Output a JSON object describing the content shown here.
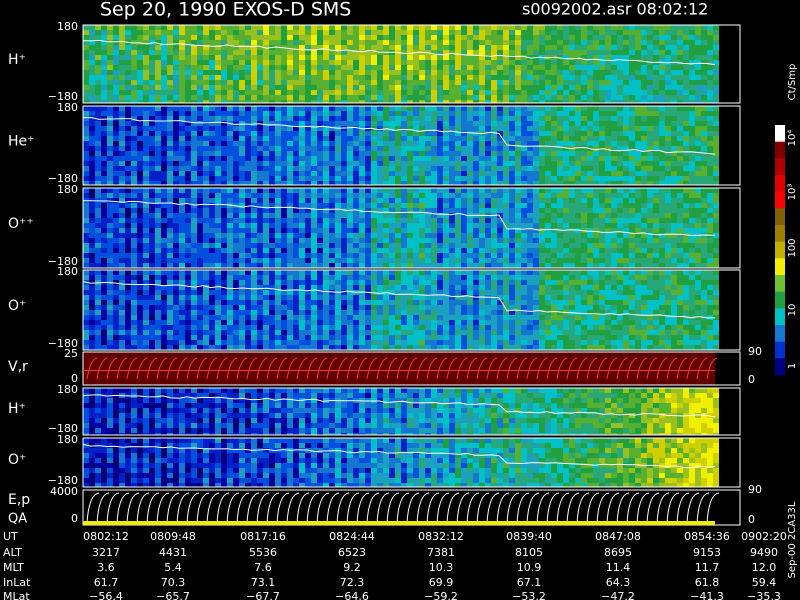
{
  "header": {
    "title": "Sep 20, 1990   EXOS-D SMS",
    "file": "s0092002.asr  08:02:12"
  },
  "panels": [
    {
      "label": "H⁺",
      "ticks": [
        "180",
        "−180"
      ]
    },
    {
      "label": "He⁺",
      "ticks": [
        "180",
        "−180"
      ]
    },
    {
      "label": "O⁺⁺",
      "ticks": [
        "180",
        "−180"
      ]
    },
    {
      "label": "O⁺",
      "ticks": [
        "180",
        "−180"
      ]
    },
    {
      "label": "V,r",
      "ticks": [
        "25",
        "0"
      ],
      "right_ticks": [
        "90",
        "0"
      ]
    },
    {
      "label": "H⁺",
      "ticks": [
        "180",
        "−180"
      ]
    },
    {
      "label": "O⁺",
      "ticks": [
        "180",
        "−180"
      ]
    },
    {
      "label": "E,p",
      "label2": "QA",
      "ticks": [
        "4000",
        "0"
      ],
      "right_ticks": [
        "90",
        "0"
      ]
    }
  ],
  "colorbar": {
    "title": "Ct/Smp",
    "ticks": [
      "10⁴",
      "10³",
      "100",
      "10",
      "1"
    ]
  },
  "table": {
    "rows": [
      {
        "label": "UT",
        "values": [
          "0802:12",
          "0809:48",
          "0817:16",
          "0824:44",
          "0832:12",
          "0839:40",
          "0847:08",
          "0854:36",
          "0902:20"
        ]
      },
      {
        "label": "ALT",
        "values": [
          "3217",
          "4431",
          "5536",
          "6523",
          "7381",
          "8105",
          "8695",
          "9153",
          "9490"
        ]
      },
      {
        "label": "MLT",
        "values": [
          "3.6",
          "5.4",
          "7.6",
          "9.2",
          "10.3",
          "10.9",
          "11.4",
          "11.7",
          "12.0"
        ]
      },
      {
        "label": "InLat",
        "values": [
          "61.7",
          "70.3",
          "73.1",
          "72.3",
          "69.9",
          "67.1",
          "64.3",
          "61.8",
          "59.4"
        ]
      },
      {
        "label": "MLat",
        "values": [
          "−56.4",
          "−65.7",
          "−67.7",
          "−64.6",
          "−59.2",
          "−53.2",
          "−47.2",
          "−41.3",
          "−35.3"
        ]
      }
    ]
  },
  "footer": "Sep-00 2CA33L"
}
